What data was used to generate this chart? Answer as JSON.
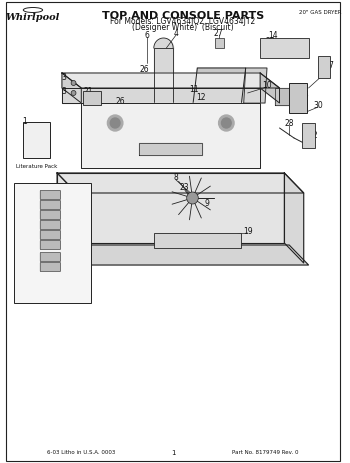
{
  "title": "TOP AND CONSOLE PARTS",
  "subtitle1": "For Models: LGV4634JQ2, LGV4634JT2",
  "subtitle2": "(Designer White)  (Biscuit)",
  "top_right": "20\" GAS DRYER",
  "bottom_left": "6-03 Litho in U.S.A. 0003",
  "bottom_center": "1",
  "bottom_right": "Part No. 8179749 Rev. 0",
  "bg_color": "#ffffff",
  "line_color": "#222222",
  "text_color": "#111111"
}
